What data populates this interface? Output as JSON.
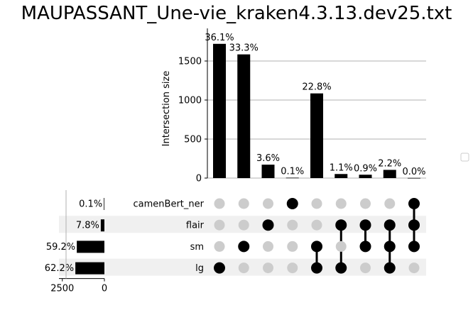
{
  "chart_data": {
    "type": "bar",
    "title": "MAUPASSANT_Une-vie_kraken4.3.13.dev25.txt",
    "ylabel": "Intersection size",
    "ylim": [
      0,
      1800
    ],
    "yticks": [
      0,
      500,
      1000,
      1500
    ],
    "grid": true,
    "sets": [
      "camenBert_ner",
      "flair",
      "sm",
      "lg"
    ],
    "set_sizes": {
      "values": [
        4,
        215,
        1640,
        1725
      ],
      "labels": [
        "0.1%",
        "7.8%",
        "59.2%",
        "62.2%"
      ],
      "xticks": [
        2500,
        0
      ]
    },
    "intersections": [
      {
        "members": [
          "lg"
        ],
        "value": 1720,
        "label": "36.1%"
      },
      {
        "members": [
          "sm"
        ],
        "value": 1585,
        "label": "33.3%"
      },
      {
        "members": [
          "flair"
        ],
        "value": 172,
        "label": "3.6%"
      },
      {
        "members": [
          "camenBert_ner"
        ],
        "value": 5,
        "label": "0.1%"
      },
      {
        "members": [
          "sm",
          "lg"
        ],
        "value": 1085,
        "label": "22.8%"
      },
      {
        "members": [
          "flair",
          "lg"
        ],
        "value": 52,
        "label": "1.1%"
      },
      {
        "members": [
          "flair",
          "sm"
        ],
        "value": 43,
        "label": "0.9%"
      },
      {
        "members": [
          "flair",
          "sm",
          "lg"
        ],
        "value": 105,
        "label": "2.2%"
      },
      {
        "members": [
          "camenBert_ner",
          "flair",
          "sm"
        ],
        "value": 2,
        "label": "0.0%"
      }
    ],
    "colors": {
      "bar": "#000000",
      "dot_active": "#000000",
      "dot_inactive": "#cccccc",
      "stripe": "#f0f0f0",
      "grid": "#b0b0b0"
    }
  }
}
